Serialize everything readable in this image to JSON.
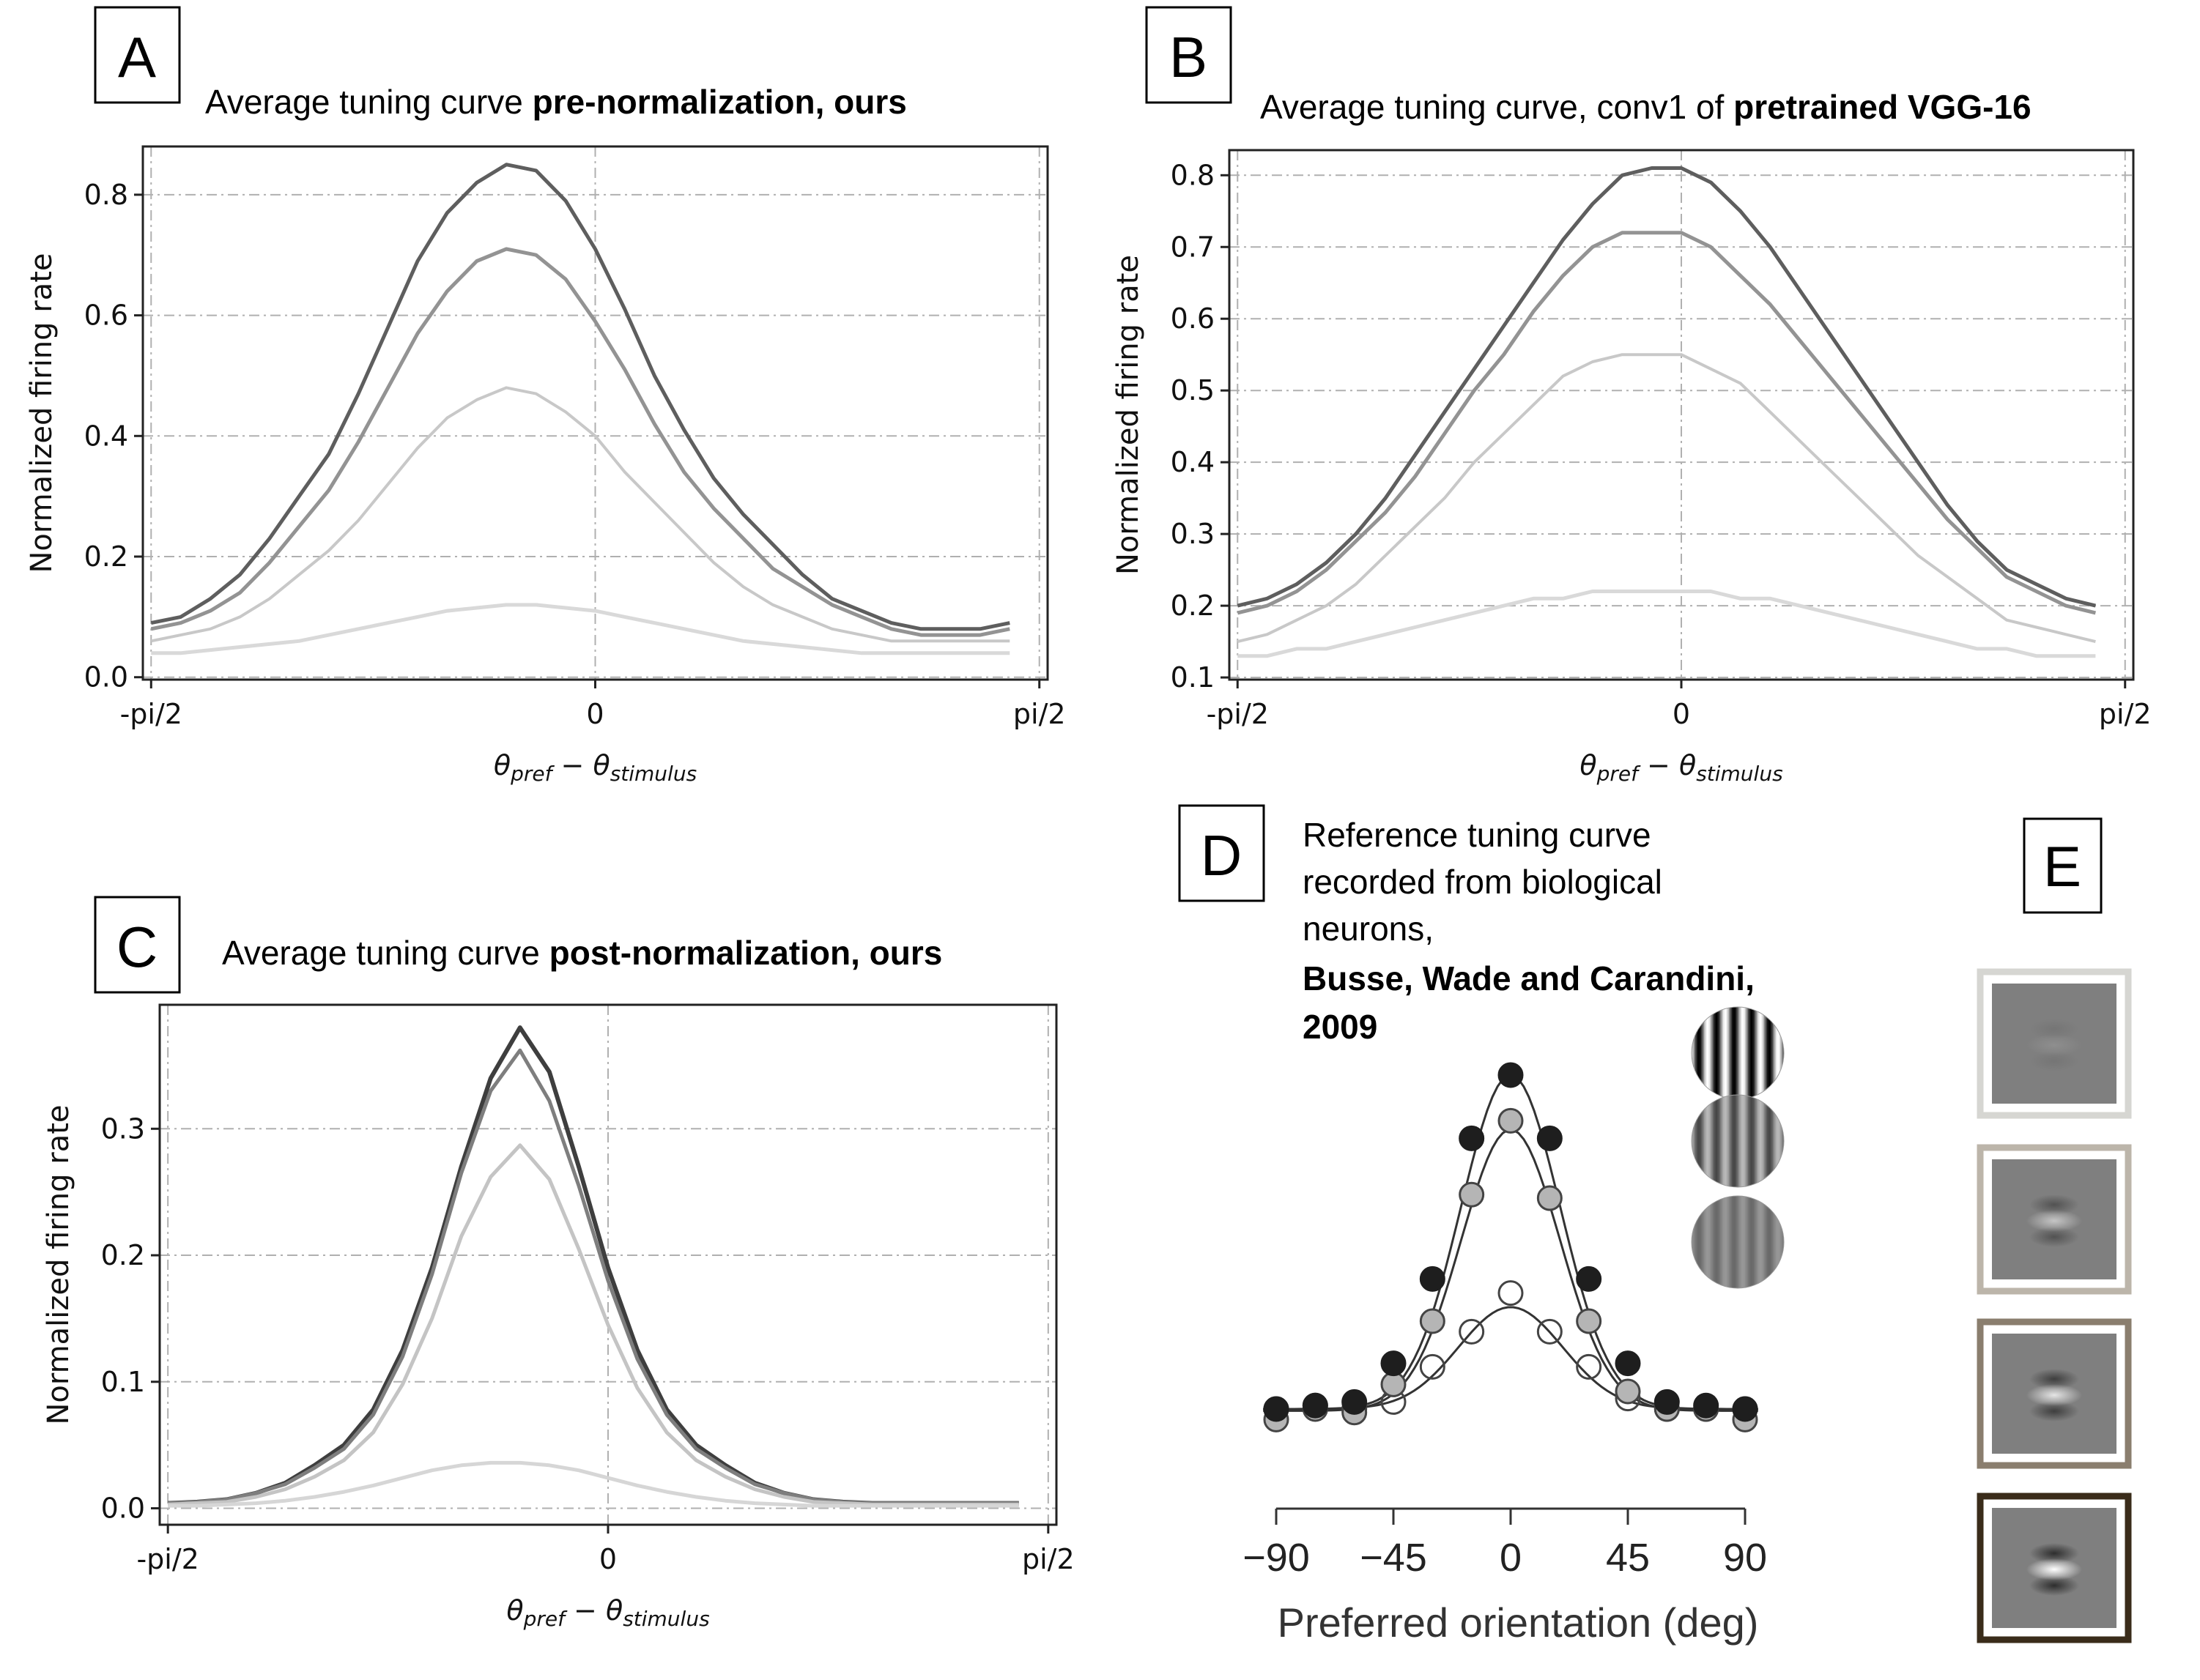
{
  "panel_letters": {
    "a": "A",
    "b": "B",
    "c": "C",
    "d": "D",
    "e": "E"
  },
  "titles": {
    "a_plain": "Average tuning curve ",
    "a_bold": "pre-normalization, ours",
    "b_plain": "Average tuning curve, conv1 of ",
    "b_bold": "pretrained VGG-16",
    "c_plain": "Average tuning curve ",
    "c_bold": "post-normalization, ours",
    "d_line1": "Reference tuning curve",
    "d_line2": "recorded from biological",
    "d_line3": "neurons,",
    "d_bold1": "Busse, Wade and Carandini,",
    "d_bold2": "2009"
  },
  "axis_text": {
    "ylabel": "Normalized firing rate",
    "x_left": "-pi/2",
    "x_mid": "0",
    "x_right": "pi/2",
    "xlabel_theta": "θ",
    "xlabel_pref": "pref",
    "xlabel_minus": " − θ",
    "xlabel_stim": "stimulus",
    "d_xlabel": "Preferred orientation (deg)"
  },
  "colors": {
    "series": [
      "#5e5e5e",
      "#939393",
      "#c8c8c8",
      "#d9d9d9"
    ],
    "series_c": [
      "#3e3e3e",
      "#7e7e7e",
      "#c4c4c4",
      "#d6d6d6"
    ],
    "e_frames": [
      "#d6d6d2",
      "#bcb5aa",
      "#8a7e6e",
      "#3a2c1a"
    ]
  },
  "chart_data": [
    {
      "id": "A",
      "type": "line",
      "title": "Average tuning curve pre-normalization, ours",
      "xlabel": "θpref − θstimulus",
      "ylabel": "Normalized firing rate",
      "xticklabels": [
        "-pi/2",
        "0",
        "pi/2"
      ],
      "xlim": [
        -1.6,
        1.6
      ],
      "ylim": [
        -0.004,
        0.88
      ],
      "yticks": [
        0.0,
        0.2,
        0.4,
        0.6,
        0.8
      ],
      "x": [
        -1.5708,
        -1.4661,
        -1.3614,
        -1.2566,
        -1.1519,
        -1.0472,
        -0.9425,
        -0.8378,
        -0.733,
        -0.6283,
        -0.5236,
        -0.4189,
        -0.3142,
        -0.2094,
        -0.1047,
        0.0,
        0.1047,
        0.2094,
        0.3142,
        0.4189,
        0.5236,
        0.6283,
        0.733,
        0.8378,
        0.9425,
        1.0472,
        1.1519,
        1.2566,
        1.3614,
        1.4661
      ],
      "series": [
        {
          "values": [
            0.09,
            0.1,
            0.13,
            0.17,
            0.23,
            0.3,
            0.37,
            0.47,
            0.58,
            0.69,
            0.77,
            0.82,
            0.85,
            0.84,
            0.79,
            0.71,
            0.61,
            0.5,
            0.41,
            0.33,
            0.27,
            0.22,
            0.17,
            0.13,
            0.11,
            0.09,
            0.08,
            0.08,
            0.08,
            0.09
          ]
        },
        {
          "values": [
            0.08,
            0.09,
            0.11,
            0.14,
            0.19,
            0.25,
            0.31,
            0.39,
            0.48,
            0.57,
            0.64,
            0.69,
            0.71,
            0.7,
            0.66,
            0.59,
            0.51,
            0.42,
            0.34,
            0.28,
            0.23,
            0.18,
            0.15,
            0.12,
            0.1,
            0.08,
            0.07,
            0.07,
            0.07,
            0.08
          ]
        },
        {
          "values": [
            0.06,
            0.07,
            0.08,
            0.1,
            0.13,
            0.17,
            0.21,
            0.26,
            0.32,
            0.38,
            0.43,
            0.46,
            0.48,
            0.47,
            0.44,
            0.4,
            0.34,
            0.29,
            0.24,
            0.19,
            0.15,
            0.12,
            0.1,
            0.08,
            0.07,
            0.06,
            0.06,
            0.06,
            0.06,
            0.06
          ]
        },
        {
          "values": [
            0.04,
            0.04,
            0.045,
            0.05,
            0.055,
            0.06,
            0.07,
            0.08,
            0.09,
            0.1,
            0.11,
            0.115,
            0.12,
            0.12,
            0.115,
            0.11,
            0.1,
            0.09,
            0.08,
            0.07,
            0.06,
            0.055,
            0.05,
            0.045,
            0.04,
            0.04,
            0.04,
            0.04,
            0.04,
            0.04
          ]
        }
      ]
    },
    {
      "id": "B",
      "type": "line",
      "title": "Average tuning curve, conv1 of pretrained VGG-16",
      "xlabel": "θpref − θstimulus",
      "ylabel": "Normalized firing rate",
      "xticklabels": [
        "-pi/2",
        "0",
        "pi/2"
      ],
      "xlim": [
        -1.6,
        1.6
      ],
      "ylim": [
        0.097,
        0.835
      ],
      "yticks": [
        0.1,
        0.2,
        0.3,
        0.4,
        0.5,
        0.6,
        0.7,
        0.8
      ],
      "x": [
        -1.5708,
        -1.4661,
        -1.3614,
        -1.2566,
        -1.1519,
        -1.0472,
        -0.9425,
        -0.8378,
        -0.733,
        -0.6283,
        -0.5236,
        -0.4189,
        -0.3142,
        -0.2094,
        -0.1047,
        0.0,
        0.1047,
        0.2094,
        0.3142,
        0.4189,
        0.5236,
        0.6283,
        0.733,
        0.8378,
        0.9425,
        1.0472,
        1.1519,
        1.2566,
        1.3614,
        1.4661
      ],
      "series": [
        {
          "values": [
            0.2,
            0.21,
            0.23,
            0.26,
            0.3,
            0.35,
            0.41,
            0.47,
            0.53,
            0.59,
            0.65,
            0.71,
            0.76,
            0.8,
            0.81,
            0.81,
            0.79,
            0.75,
            0.7,
            0.64,
            0.58,
            0.52,
            0.46,
            0.4,
            0.34,
            0.29,
            0.25,
            0.23,
            0.21,
            0.2
          ]
        },
        {
          "values": [
            0.19,
            0.2,
            0.22,
            0.25,
            0.29,
            0.33,
            0.38,
            0.44,
            0.5,
            0.55,
            0.61,
            0.66,
            0.7,
            0.72,
            0.72,
            0.72,
            0.7,
            0.66,
            0.62,
            0.57,
            0.52,
            0.47,
            0.42,
            0.37,
            0.32,
            0.28,
            0.24,
            0.22,
            0.2,
            0.19
          ]
        },
        {
          "values": [
            0.15,
            0.16,
            0.18,
            0.2,
            0.23,
            0.27,
            0.31,
            0.35,
            0.4,
            0.44,
            0.48,
            0.52,
            0.54,
            0.55,
            0.55,
            0.55,
            0.53,
            0.51,
            0.47,
            0.43,
            0.39,
            0.35,
            0.31,
            0.27,
            0.24,
            0.21,
            0.18,
            0.17,
            0.16,
            0.15
          ]
        },
        {
          "values": [
            0.13,
            0.13,
            0.14,
            0.14,
            0.15,
            0.16,
            0.17,
            0.18,
            0.19,
            0.2,
            0.21,
            0.21,
            0.22,
            0.22,
            0.22,
            0.22,
            0.22,
            0.21,
            0.21,
            0.2,
            0.19,
            0.18,
            0.17,
            0.16,
            0.15,
            0.14,
            0.14,
            0.13,
            0.13,
            0.13
          ]
        }
      ]
    },
    {
      "id": "C",
      "type": "line",
      "title": "Average tuning curve post-normalization, ours",
      "xlabel": "θpref − θstimulus",
      "ylabel": "Normalized firing rate",
      "xticklabels": [
        "-pi/2",
        "0",
        "pi/2"
      ],
      "xlim": [
        -1.6,
        1.6
      ],
      "ylim": [
        -0.013,
        0.398
      ],
      "yticks": [
        0.0,
        0.1,
        0.2,
        0.3
      ],
      "x": [
        -1.5708,
        -1.4661,
        -1.3614,
        -1.2566,
        -1.1519,
        -1.0472,
        -0.9425,
        -0.8378,
        -0.733,
        -0.6283,
        -0.5236,
        -0.4189,
        -0.3142,
        -0.2094,
        -0.1047,
        0.0,
        0.1047,
        0.2094,
        0.3142,
        0.4189,
        0.5236,
        0.6283,
        0.733,
        0.8378,
        0.9425,
        1.0472,
        1.1519,
        1.2566,
        1.3614,
        1.4661
      ],
      "series": [
        {
          "values": [
            0.004,
            0.005,
            0.007,
            0.012,
            0.02,
            0.034,
            0.05,
            0.078,
            0.125,
            0.19,
            0.27,
            0.34,
            0.38,
            0.345,
            0.27,
            0.19,
            0.125,
            0.078,
            0.05,
            0.034,
            0.02,
            0.012,
            0.007,
            0.005,
            0.004,
            0.004,
            0.004,
            0.004,
            0.004,
            0.004
          ]
        },
        {
          "values": [
            0.004,
            0.005,
            0.007,
            0.012,
            0.019,
            0.032,
            0.047,
            0.074,
            0.12,
            0.185,
            0.265,
            0.33,
            0.362,
            0.322,
            0.255,
            0.18,
            0.118,
            0.074,
            0.047,
            0.032,
            0.019,
            0.012,
            0.007,
            0.005,
            0.004,
            0.004,
            0.004,
            0.004,
            0.004,
            0.004
          ]
        },
        {
          "values": [
            0.003,
            0.004,
            0.005,
            0.009,
            0.015,
            0.025,
            0.038,
            0.06,
            0.098,
            0.15,
            0.215,
            0.262,
            0.287,
            0.26,
            0.205,
            0.145,
            0.095,
            0.06,
            0.038,
            0.025,
            0.015,
            0.009,
            0.005,
            0.004,
            0.003,
            0.003,
            0.003,
            0.003,
            0.003,
            0.003
          ]
        },
        {
          "values": [
            0.002,
            0.002,
            0.003,
            0.004,
            0.006,
            0.009,
            0.013,
            0.018,
            0.024,
            0.03,
            0.034,
            0.036,
            0.036,
            0.034,
            0.03,
            0.024,
            0.018,
            0.013,
            0.009,
            0.006,
            0.004,
            0.003,
            0.002,
            0.002,
            0.002,
            0.002,
            0.002,
            0.002,
            0.002,
            0.002
          ]
        }
      ]
    },
    {
      "id": "D",
      "type": "scatter",
      "title": "Reference tuning curve recorded from biological neurons, Busse, Wade and Carandini, 2009",
      "xlabel": "Preferred orientation (deg)",
      "xticks": [
        -90,
        -45,
        0,
        45,
        90
      ],
      "xlim": [
        -90,
        90
      ],
      "ylim": [
        0,
        1
      ],
      "markers": [
        "filled-black",
        "filled-gray",
        "open"
      ],
      "series": [
        {
          "style": "filled-black",
          "x": [
            -90,
            -75,
            -60,
            -45,
            -30,
            -15,
            0,
            15,
            30,
            45,
            60,
            75,
            90
          ],
          "y": [
            0.05,
            0.06,
            0.07,
            0.18,
            0.42,
            0.82,
            1.0,
            0.82,
            0.42,
            0.18,
            0.07,
            0.06,
            0.05
          ]
        },
        {
          "style": "filled-gray",
          "x": [
            -90,
            -75,
            -60,
            -45,
            -30,
            -15,
            0,
            15,
            30,
            45,
            60,
            75,
            90
          ],
          "y": [
            0.02,
            0.05,
            0.04,
            0.12,
            0.3,
            0.66,
            0.87,
            0.65,
            0.3,
            0.1,
            0.05,
            0.05,
            0.02
          ]
        },
        {
          "style": "open",
          "x": [
            -90,
            -75,
            -60,
            -45,
            -30,
            -15,
            0,
            15,
            30,
            45,
            60,
            75,
            90
          ],
          "y": [
            0.05,
            0.06,
            0.05,
            0.07,
            0.17,
            0.27,
            0.38,
            0.27,
            0.17,
            0.08,
            0.05,
            0.05,
            0.05
          ]
        }
      ],
      "fits": [
        {
          "base": 0.05,
          "amp": 0.95,
          "sigma": 19
        },
        {
          "base": 0.045,
          "amp": 0.8,
          "sigma": 19
        },
        {
          "base": 0.05,
          "amp": 0.29,
          "sigma": 20
        }
      ]
    }
  ],
  "e_items": [
    {
      "blob_contrast": 0.12
    },
    {
      "blob_contrast": 0.55
    },
    {
      "blob_contrast": 0.8
    },
    {
      "blob_contrast": 1.0
    }
  ]
}
